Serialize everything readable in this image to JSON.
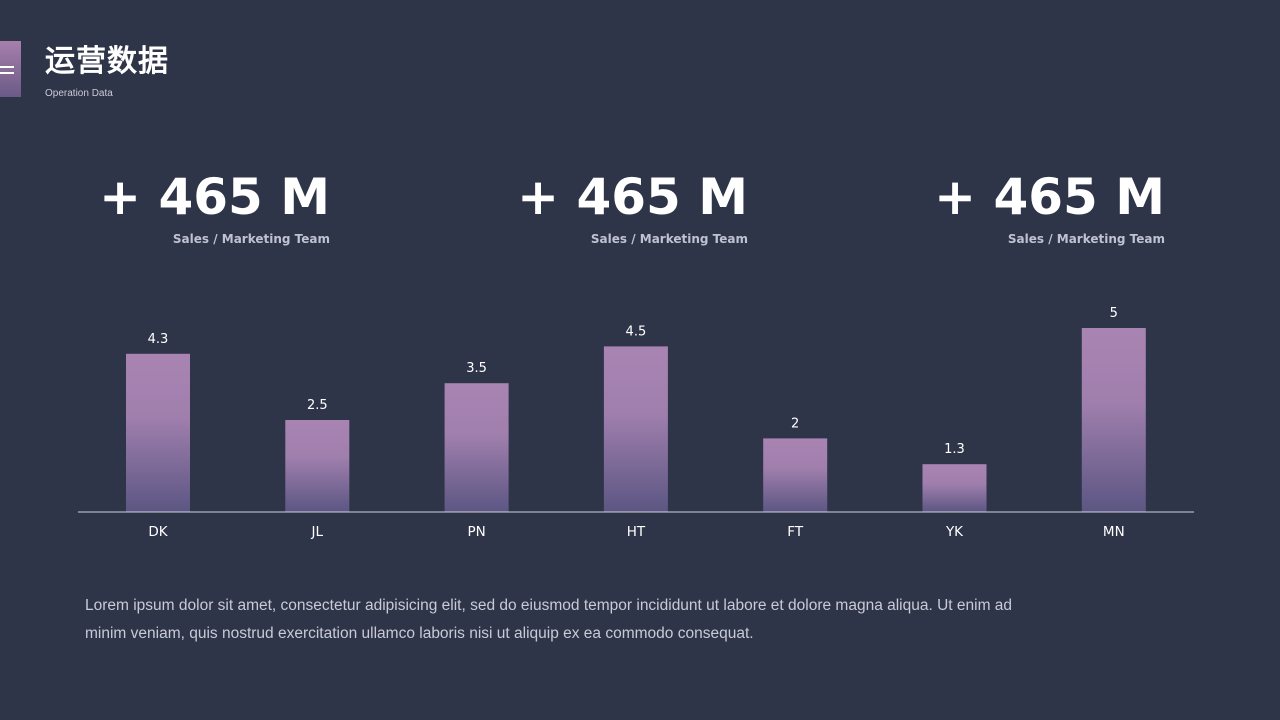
{
  "header": {
    "title": "运营数据",
    "subtitle": "Operation Data"
  },
  "stats": [
    {
      "value": "+ 465 M",
      "label": "Sales / Marketing Team"
    },
    {
      "value": "+ 465 M",
      "label": "Sales / Marketing Team"
    },
    {
      "value": "+ 465 M",
      "label": "Sales / Marketing Team"
    }
  ],
  "chart_data": {
    "type": "bar",
    "categories": [
      "DK",
      "JL",
      "PN",
      "HT",
      "FT",
      "YK",
      "MN"
    ],
    "values": [
      4.3,
      2.5,
      3.5,
      4.5,
      2,
      1.3,
      5
    ],
    "value_labels": [
      "4.3",
      "2.5",
      "3.5",
      "4.5",
      "2",
      "1.3",
      "5"
    ],
    "ylim": [
      0,
      5
    ],
    "grid": false,
    "legend": "none",
    "bar_gradient": [
      "#a984b3",
      "#5c5683"
    ]
  },
  "description": "Lorem ipsum dolor sit amet, consectetur adipisicing elit, sed do eiusmod tempor incididunt ut labore et dolore magna aliqua. Ut enim ad minim veniam, quis nostrud exercitation ullamco laboris nisi ut aliquip ex ea commodo consequat.",
  "colors": {
    "background": "#2f3549",
    "accent": "#a984b3",
    "text": "#ffffff"
  }
}
